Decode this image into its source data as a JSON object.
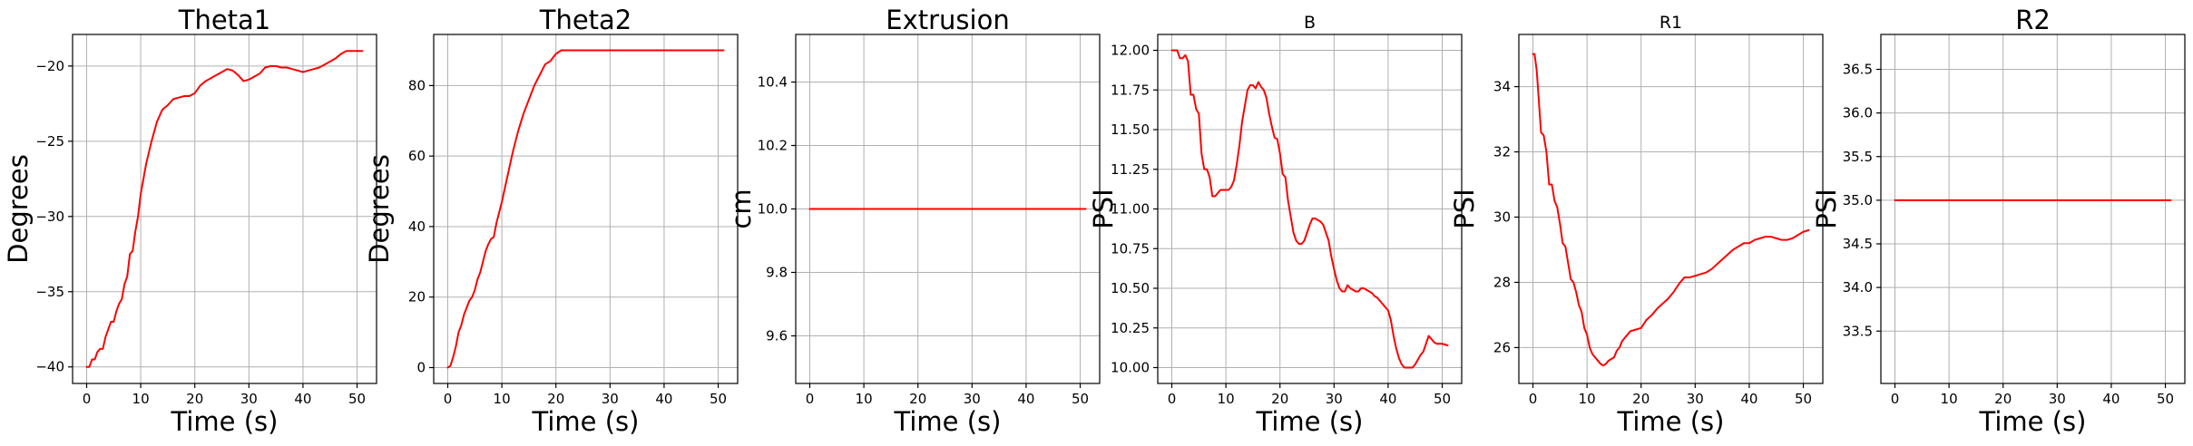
{
  "chart_data": [
    {
      "type": "line",
      "title": "Theta1",
      "title_size": "large",
      "xlabel": "Time (s)",
      "ylabel": "Degrees",
      "xlim": [
        -2.6,
        53.6
      ],
      "ylim": [
        -41.1,
        -17.9
      ],
      "xticks": [
        0,
        10,
        20,
        30,
        40,
        50
      ],
      "yticks": [
        -40,
        -35,
        -30,
        -25,
        -20
      ],
      "grid": true,
      "color": "#ff0000",
      "series": [
        {
          "x": [
            0,
            0.5,
            1,
            1.5,
            2,
            2.5,
            3,
            3.5,
            4,
            4.5,
            5,
            5.5,
            6,
            6.5,
            7,
            7.5,
            8,
            8.5,
            9,
            9.5,
            10,
            11,
            12,
            13,
            14,
            15,
            16,
            17,
            18,
            19,
            20,
            21,
            22,
            23,
            24,
            25,
            26,
            27,
            28,
            29,
            30,
            31,
            32,
            33,
            34,
            35,
            36,
            37,
            38,
            39,
            40,
            41,
            42,
            43,
            44,
            45,
            46,
            47,
            48,
            49,
            50,
            51
          ],
          "y": [
            -40,
            -40,
            -39.5,
            -39.5,
            -39,
            -38.8,
            -38.8,
            -38,
            -37.5,
            -37,
            -37,
            -36.3,
            -35.8,
            -35.5,
            -34.5,
            -34,
            -32.5,
            -32.3,
            -31,
            -30,
            -28.5,
            -26.5,
            -25,
            -23.7,
            -22.9,
            -22.6,
            -22.2,
            -22.1,
            -22.0,
            -22.0,
            -21.8,
            -21.3,
            -21.0,
            -20.8,
            -20.6,
            -20.4,
            -20.2,
            -20.3,
            -20.6,
            -21.0,
            -20.9,
            -20.7,
            -20.5,
            -20.1,
            -20.0,
            -20.0,
            -20.1,
            -20.1,
            -20.2,
            -20.3,
            -20.4,
            -20.3,
            -20.2,
            -20.1,
            -19.9,
            -19.7,
            -19.5,
            -19.2,
            -19.0,
            -19.0,
            -19.0,
            -19.0
          ]
        }
      ]
    },
    {
      "type": "line",
      "title": "Theta2",
      "title_size": "large",
      "xlabel": "Time (s)",
      "ylabel": "Degrees",
      "xlim": [
        -2.6,
        53.6
      ],
      "ylim": [
        -4.5,
        94.5
      ],
      "xticks": [
        0,
        10,
        20,
        30,
        40,
        50
      ],
      "yticks": [
        0,
        20,
        40,
        60,
        80
      ],
      "grid": true,
      "color": "#ff0000",
      "series": [
        {
          "x": [
            0,
            0.5,
            1,
            1.5,
            2,
            2.5,
            3,
            3.5,
            4,
            4.5,
            5,
            5.5,
            6,
            6.5,
            7,
            7.5,
            8,
            8.5,
            9,
            10,
            11,
            12,
            13,
            14,
            15,
            16,
            17,
            18,
            19,
            20,
            21,
            22,
            23,
            24,
            25,
            30,
            35,
            40,
            45,
            50,
            51
          ],
          "y": [
            0,
            0.5,
            3,
            6,
            10,
            12,
            15,
            17,
            19,
            20,
            22,
            25,
            27,
            30,
            33,
            35,
            36.5,
            37,
            41,
            47,
            54,
            61,
            67,
            72,
            76,
            80,
            83,
            86,
            87,
            89,
            90,
            90,
            90,
            90,
            90,
            90,
            90,
            90,
            90,
            90,
            90
          ]
        }
      ]
    },
    {
      "type": "line",
      "title": "Extrusion",
      "title_size": "large",
      "xlabel": "Time (s)",
      "ylabel": "cm",
      "xlim": [
        -2.6,
        53.6
      ],
      "ylim": [
        9.45,
        10.55
      ],
      "xticks": [
        0,
        10,
        20,
        30,
        40,
        50
      ],
      "yticks": [
        9.6,
        9.8,
        10.0,
        10.2,
        10.4
      ],
      "ytick_labels": [
        "9.6",
        "9.8",
        "10.0",
        "10.2",
        "10.4"
      ],
      "grid": true,
      "color": "#ff0000",
      "series": [
        {
          "x": [
            0,
            51
          ],
          "y": [
            10.0,
            10.0
          ]
        }
      ]
    },
    {
      "type": "line",
      "title": "B",
      "title_size": "small",
      "xlabel": "Time (s)",
      "ylabel": "PSI",
      "xlim": [
        -2.6,
        53.6
      ],
      "ylim": [
        9.9,
        12.1
      ],
      "xticks": [
        0,
        10,
        20,
        30,
        40,
        50
      ],
      "yticks": [
        10.0,
        10.25,
        10.5,
        10.75,
        11.0,
        11.25,
        11.5,
        11.75,
        12.0
      ],
      "ytick_labels": [
        "10.00",
        "10.25",
        "10.50",
        "10.75",
        "11.00",
        "11.25",
        "11.50",
        "11.75",
        "12.00"
      ],
      "grid": true,
      "color": "#ff0000",
      "series": [
        {
          "x": [
            0,
            0.5,
            1,
            1.5,
            2,
            2.5,
            3,
            3.5,
            4,
            4.5,
            5,
            5.5,
            6,
            6.5,
            7,
            7.5,
            8,
            8.5,
            9,
            9.5,
            10,
            10.5,
            11,
            11.5,
            12,
            12.5,
            13,
            13.5,
            14,
            14.5,
            15,
            15.5,
            16,
            16.5,
            17,
            17.5,
            18,
            18.5,
            19,
            19.5,
            20,
            20.5,
            21,
            21.5,
            22,
            22.5,
            23,
            23.5,
            24,
            24.5,
            25,
            25.5,
            26,
            26.5,
            27,
            27.5,
            28,
            28.5,
            29,
            29.5,
            30,
            30.5,
            31,
            31.5,
            32,
            32.5,
            33,
            33.5,
            34,
            34.5,
            35,
            35.5,
            36,
            36.5,
            37,
            37.5,
            38,
            38.5,
            39,
            39.5,
            40,
            40.5,
            41,
            41.5,
            42,
            42.5,
            43,
            43.5,
            44,
            44.5,
            45,
            45.5,
            46,
            46.5,
            47,
            47.5,
            48,
            48.5,
            49,
            49.5,
            50,
            51
          ],
          "y": [
            12.0,
            12.0,
            12.0,
            11.95,
            11.95,
            11.97,
            11.93,
            11.72,
            11.72,
            11.63,
            11.6,
            11.35,
            11.25,
            11.25,
            11.2,
            11.08,
            11.08,
            11.1,
            11.12,
            11.12,
            11.12,
            11.12,
            11.14,
            11.18,
            11.28,
            11.4,
            11.55,
            11.65,
            11.75,
            11.78,
            11.78,
            11.76,
            11.8,
            11.77,
            11.75,
            11.7,
            11.6,
            11.52,
            11.45,
            11.44,
            11.35,
            11.22,
            11.2,
            11.05,
            10.95,
            10.85,
            10.8,
            10.78,
            10.78,
            10.8,
            10.85,
            10.9,
            10.94,
            10.94,
            10.93,
            10.92,
            10.9,
            10.85,
            10.8,
            10.7,
            10.62,
            10.55,
            10.5,
            10.48,
            10.48,
            10.52,
            10.5,
            10.49,
            10.48,
            10.48,
            10.5,
            10.5,
            10.49,
            10.48,
            10.47,
            10.45,
            10.44,
            10.42,
            10.4,
            10.38,
            10.36,
            10.3,
            10.2,
            10.12,
            10.06,
            10.02,
            10.0,
            10.0,
            10.0,
            10.0,
            10.02,
            10.05,
            10.08,
            10.1,
            10.15,
            10.2,
            10.18,
            10.16,
            10.15,
            10.15,
            10.15,
            10.14
          ]
        }
      ]
    },
    {
      "type": "line",
      "title": "R1",
      "title_size": "small",
      "xlabel": "Time (s)",
      "ylabel": "PSI",
      "xlim": [
        -2.6,
        53.6
      ],
      "ylim": [
        24.9,
        35.6
      ],
      "xticks": [
        0,
        10,
        20,
        30,
        40,
        50
      ],
      "yticks": [
        26,
        28,
        30,
        32,
        34
      ],
      "grid": true,
      "color": "#ff0000",
      "series": [
        {
          "x": [
            0,
            0.3,
            0.7,
            1,
            1.5,
            2,
            2.5,
            3,
            3.5,
            4,
            4.5,
            5,
            5.5,
            6,
            6.5,
            7,
            7.5,
            8,
            8.5,
            9,
            9.5,
            10,
            10.5,
            11,
            11.5,
            12,
            12.5,
            13,
            13.5,
            14,
            14.5,
            15,
            15.5,
            16,
            16.5,
            17,
            18,
            19,
            20,
            21,
            22,
            23,
            24,
            25,
            26,
            27,
            28,
            29,
            30,
            31,
            32,
            33,
            34,
            35,
            36,
            37,
            38,
            39,
            40,
            41,
            42,
            43,
            44,
            45,
            46,
            47,
            48,
            49,
            50,
            51
          ],
          "y": [
            35.0,
            35.0,
            34.5,
            33.8,
            32.6,
            32.5,
            32.0,
            31.0,
            31.0,
            30.5,
            30.3,
            29.8,
            29.2,
            29.1,
            28.6,
            28.1,
            28.0,
            27.7,
            27.3,
            27.1,
            26.6,
            26.4,
            26.0,
            25.8,
            25.7,
            25.6,
            25.5,
            25.45,
            25.5,
            25.6,
            25.65,
            25.7,
            25.9,
            26.0,
            26.2,
            26.3,
            26.5,
            26.55,
            26.6,
            26.85,
            27.0,
            27.2,
            27.35,
            27.5,
            27.7,
            27.95,
            28.15,
            28.15,
            28.2,
            28.25,
            28.3,
            28.4,
            28.55,
            28.7,
            28.85,
            29.0,
            29.1,
            29.2,
            29.2,
            29.3,
            29.35,
            29.4,
            29.4,
            29.35,
            29.3,
            29.3,
            29.35,
            29.45,
            29.55,
            29.6
          ]
        }
      ]
    },
    {
      "type": "line",
      "title": "R2",
      "title_size": "large",
      "xlabel": "Time (s)",
      "ylabel": "PSI",
      "xlim": [
        -2.6,
        53.6
      ],
      "ylim": [
        32.9,
        36.9
      ],
      "xticks": [
        0,
        10,
        20,
        30,
        40,
        50
      ],
      "yticks": [
        33.5,
        34.0,
        34.5,
        35.0,
        35.5,
        36.0,
        36.5
      ],
      "ytick_labels": [
        "33.5",
        "34.0",
        "34.5",
        "35.0",
        "35.5",
        "36.0",
        "36.5"
      ],
      "grid": true,
      "color": "#ff0000",
      "series": [
        {
          "x": [
            0,
            51
          ],
          "y": [
            35.0,
            35.0
          ]
        }
      ]
    }
  ]
}
